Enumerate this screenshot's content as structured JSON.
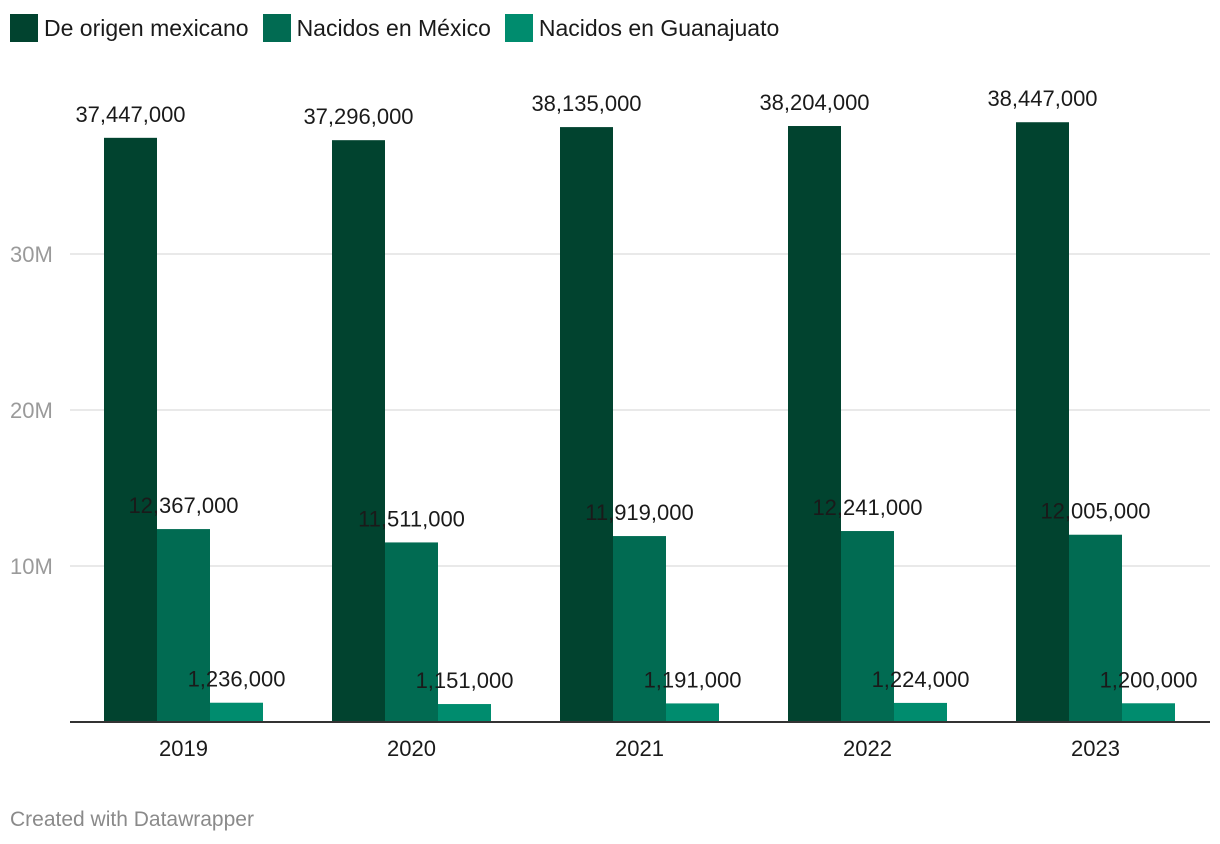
{
  "legend": [
    {
      "label": "De origen mexicano",
      "color": "#01432f"
    },
    {
      "label": "Nacidos en México",
      "color": "#016b52"
    },
    {
      "label": "Nacidos en Guanajuato",
      "color": "#008c6e"
    }
  ],
  "footer": "Created with Datawrapper",
  "chart_data": {
    "type": "bar",
    "title": "",
    "xlabel": "",
    "ylabel": "",
    "categories": [
      "2019",
      "2020",
      "2021",
      "2022",
      "2023"
    ],
    "series": [
      {
        "name": "De origen mexicano",
        "color": "#01432f",
        "values": [
          37447000,
          37296000,
          38135000,
          38204000,
          38447000
        ],
        "labels": [
          "37,447,000",
          "37,296,000",
          "38,135,000",
          "38,204,000",
          "38,447,000"
        ]
      },
      {
        "name": "Nacidos en México",
        "color": "#016b52",
        "values": [
          12367000,
          11511000,
          11919000,
          12241000,
          12005000
        ],
        "labels": [
          "12,367,000",
          "11,511,000",
          "11,919,000",
          "12,241,000",
          "12,005,000"
        ]
      },
      {
        "name": "Nacidos en Guanajuato",
        "color": "#008c6e",
        "values": [
          1236000,
          1151000,
          1191000,
          1224000,
          1200000
        ],
        "labels": [
          "1,236,000",
          "1,151,000",
          "1,191,000",
          "1,224,000",
          "1,200,000"
        ]
      }
    ],
    "ylim": [
      0,
      40000000
    ],
    "yticks": [
      10000000,
      20000000,
      30000000
    ],
    "ytick_labels": [
      "10M",
      "20M",
      "30M"
    ],
    "grid": true
  }
}
